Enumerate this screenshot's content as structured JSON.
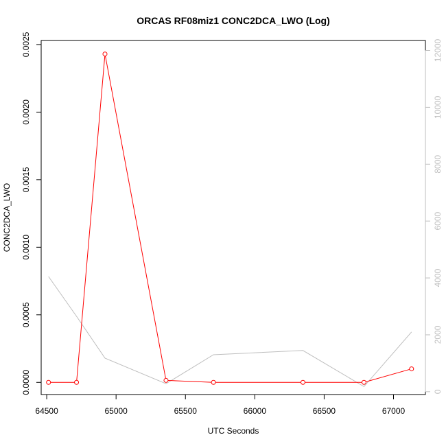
{
  "chart_data": {
    "type": "line",
    "title": "ORCAS RF08miz1 CONC2DCA_LWO (Log)",
    "xlabel": "UTC Seconds",
    "ylabel": "CONC2DCA_LWO",
    "x": [
      64513,
      64715,
      64920,
      65360,
      65702,
      66347,
      66787,
      67130
    ],
    "series": [
      {
        "axis": "left",
        "color": "#ff0000",
        "markers": "open-circle",
        "values": [
          0.0,
          0.0,
          0.00243,
          1.5e-05,
          0.0,
          0.0,
          0.0,
          0.0001
        ]
      },
      {
        "axis": "right",
        "color": "#bebebe",
        "markers": "none",
        "values": [
          4050,
          2650,
          1180,
          280,
          1300,
          1450,
          180,
          2100
        ]
      }
    ],
    "xlim": [
      64460,
      67230
    ],
    "ylim_left": [
      -9e-05,
      0.00253
    ],
    "ylim_right": [
      -100,
      12350
    ],
    "x_ticks": [
      "64500",
      "65000",
      "65500",
      "66000",
      "66500",
      "67000"
    ],
    "x_tick_values": [
      64500,
      65000,
      65500,
      66000,
      66500,
      67000
    ],
    "y_left_ticks": [
      "0.0000",
      "0.0005",
      "0.0010",
      "0.0015",
      "0.0020",
      "0.0025"
    ],
    "y_left_tick_values": [
      0,
      0.0005,
      0.001,
      0.0015,
      0.002,
      0.0025
    ],
    "y_right_ticks": [
      "0",
      "2000",
      "4000",
      "6000",
      "8000",
      "10000",
      "12000"
    ],
    "y_right_tick_values": [
      0,
      2000,
      4000,
      6000,
      8000,
      10000,
      12000
    ],
    "grid": false,
    "legend": "none",
    "colors": {
      "left_axis": "#000000",
      "right_axis": "#bebebe"
    }
  }
}
